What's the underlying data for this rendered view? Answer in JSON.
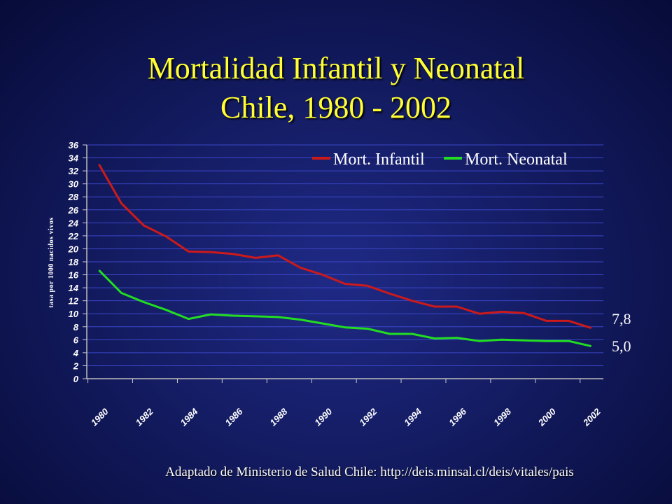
{
  "title": {
    "line1": "Mortalidad Infantil y Neonatal",
    "line2": "Chile, 1980 - 2002"
  },
  "source": "Adaptado de Ministerio de Salud Chile:  http://deis.minsal.cl/deis/vitales/pais",
  "colors": {
    "infantil": "#cc1a1a",
    "neonatal": "#22dd22",
    "grid": "#3a46c8",
    "text": "#ffffff",
    "title": "#ffff33"
  },
  "chart_data": {
    "type": "line",
    "ylabel": "tasa por 1000 nacidos vivos",
    "xlabel": "",
    "ylim": [
      0,
      36
    ],
    "yticks": [
      0,
      2,
      4,
      6,
      8,
      10,
      12,
      14,
      16,
      18,
      20,
      22,
      24,
      26,
      28,
      30,
      32,
      34,
      36
    ],
    "xticks": [
      "1980",
      "1982",
      "1984",
      "1986",
      "1988",
      "1990",
      "1992",
      "1994",
      "1996",
      "1998",
      "2000",
      "2002"
    ],
    "x": [
      1980,
      1981,
      1982,
      1983,
      1984,
      1985,
      1986,
      1987,
      1988,
      1989,
      1990,
      1991,
      1992,
      1993,
      1994,
      1995,
      1996,
      1997,
      1998,
      1999,
      2000,
      2001,
      2002
    ],
    "grid": true,
    "legend_position": "top-right",
    "series": [
      {
        "name": "Mort. Infantil",
        "color": "#cc1a1a",
        "values": [
          33.0,
          27.0,
          23.6,
          21.9,
          19.6,
          19.5,
          19.2,
          18.6,
          19.0,
          17.1,
          16.0,
          14.6,
          14.3,
          13.1,
          12.0,
          11.1,
          11.1,
          10.0,
          10.3,
          10.1,
          8.9,
          8.9,
          7.8
        ],
        "end_label": "7,8"
      },
      {
        "name": "Mort. Neonatal",
        "color": "#22dd22",
        "values": [
          16.7,
          13.2,
          11.8,
          10.6,
          9.2,
          9.9,
          9.7,
          9.6,
          9.5,
          9.1,
          8.5,
          7.9,
          7.7,
          6.9,
          6.9,
          6.2,
          6.3,
          5.8,
          6.0,
          5.9,
          5.8,
          5.8,
          5.0
        ],
        "end_label": "5,0"
      }
    ]
  }
}
